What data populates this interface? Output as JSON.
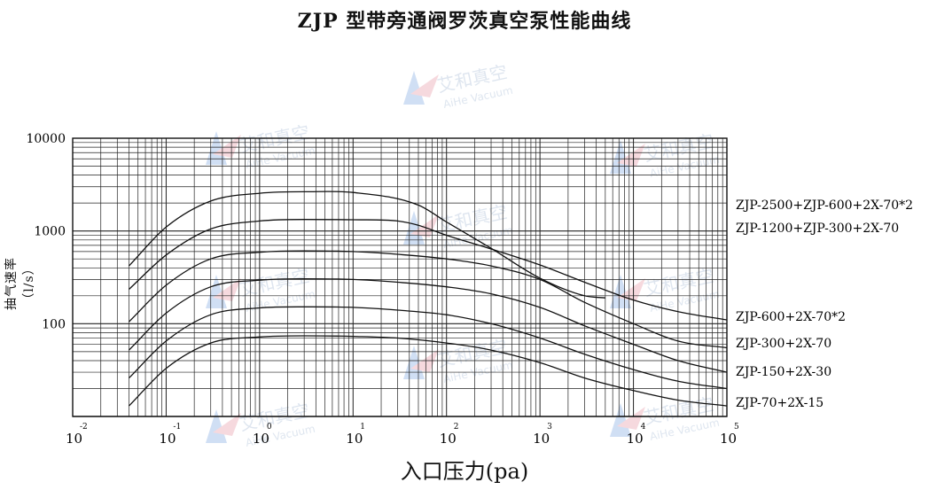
{
  "chart_data": {
    "type": "line",
    "title": "ZJP 型带旁通阀罗茨真空泵性能曲线",
    "xlabel": "入口压力(pa)",
    "ylabel": "抽气速率（l/s）",
    "xscale": "log",
    "yscale": "log",
    "xlim": [
      0.01,
      100000
    ],
    "ylim": [
      10,
      10000
    ],
    "x_ticks": [
      {
        "base": "10",
        "exp": "-2"
      },
      {
        "base": "10",
        "exp": "-1"
      },
      {
        "base": "10",
        "exp": "0"
      },
      {
        "base": "10",
        "exp": "1"
      },
      {
        "base": "10",
        "exp": "2"
      },
      {
        "base": "10",
        "exp": "3"
      },
      {
        "base": "10",
        "exp": "4"
      },
      {
        "base": "10",
        "exp": "5"
      }
    ],
    "y_ticks": [
      "10000",
      "1000",
      "100"
    ],
    "grid": true,
    "series": [
      {
        "name": "ZJP-2500+ZJP-600+2X-70*2",
        "x": [
          0.04,
          0.1,
          0.3,
          1,
          3,
          10,
          50,
          100,
          300,
          1000,
          3000,
          5000
        ],
        "y": [
          420,
          1100,
          2100,
          2550,
          2650,
          2600,
          1900,
          1250,
          650,
          310,
          200,
          190
        ]
      },
      {
        "name": "ZJP-1200+ZJP-300+2X-70",
        "x": [
          0.04,
          0.1,
          0.3,
          1,
          3,
          10,
          30,
          50,
          100,
          300,
          1000,
          3000,
          10000,
          30000,
          100000
        ],
        "y": [
          235,
          550,
          1050,
          1280,
          1330,
          1320,
          1280,
          1150,
          900,
          640,
          430,
          280,
          180,
          135,
          110
        ]
      },
      {
        "name": "ZJP-600+2X-70*2",
        "x": [
          0.04,
          0.1,
          0.3,
          1,
          3,
          10,
          30,
          100,
          300,
          1000,
          3000,
          10000,
          30000,
          100000
        ],
        "y": [
          105,
          260,
          500,
          590,
          610,
          600,
          560,
          500,
          420,
          300,
          170,
          100,
          65,
          55
        ]
      },
      {
        "name": "ZJP-300+2X-70",
        "x": [
          0.04,
          0.1,
          0.3,
          1,
          3,
          10,
          30,
          100,
          300,
          1000,
          3000,
          10000,
          30000,
          100000
        ],
        "y": [
          52,
          130,
          250,
          295,
          305,
          300,
          280,
          250,
          210,
          150,
          95,
          60,
          40,
          30
        ]
      },
      {
        "name": "ZJP-150+2X-30",
        "x": [
          0.04,
          0.1,
          0.3,
          1,
          3,
          10,
          30,
          100,
          300,
          1000,
          3000,
          10000,
          30000,
          100000
        ],
        "y": [
          26,
          65,
          125,
          148,
          152,
          150,
          140,
          125,
          100,
          70,
          47,
          32,
          24,
          20
        ]
      },
      {
        "name": "ZJP-70+2X-15",
        "x": [
          0.04,
          0.1,
          0.3,
          1,
          3,
          10,
          30,
          100,
          300,
          1000,
          3000,
          10000,
          30000,
          100000
        ],
        "y": [
          13,
          33,
          62,
          72,
          74,
          73,
          70,
          62,
          52,
          38,
          26,
          19,
          15,
          13
        ]
      }
    ],
    "legend_placement": "right-side labels beside curve ends"
  },
  "watermark": {
    "cn": "艾和真空",
    "en": "AiHe Vacuum"
  }
}
